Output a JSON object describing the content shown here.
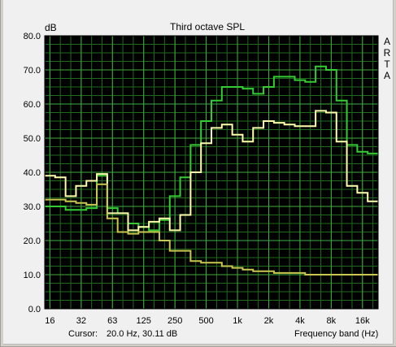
{
  "chart_data": {
    "type": "line",
    "title": "Third octave SPL",
    "ylabel": "dB",
    "xlabel": "Frequency band (Hz)",
    "watermark": [
      "A",
      "R",
      "T",
      "A"
    ],
    "ylim": [
      0,
      80
    ],
    "yticks": [
      "0.0",
      "10.0",
      "20.0",
      "30.0",
      "40.0",
      "50.0",
      "60.0",
      "70.0",
      "80.0"
    ],
    "xticks": [
      "16",
      "32",
      "63",
      "125",
      "250",
      "500",
      "1k",
      "2k",
      "4k",
      "8k",
      "16k"
    ],
    "grid": true,
    "cursor_label": "Cursor:",
    "cursor_value": "20.0 Hz, 30.11 dB",
    "bands": [
      "16",
      "20",
      "25",
      "31.5",
      "40",
      "50",
      "63",
      "80",
      "100",
      "125",
      "160",
      "200",
      "250",
      "315",
      "400",
      "500",
      "630",
      "800",
      "1k",
      "1.25k",
      "1.6k",
      "2k",
      "2.5k",
      "3.15k",
      "4k",
      "5k",
      "6.3k",
      "8k",
      "10k",
      "12.5k",
      "16k",
      "20k"
    ],
    "series": [
      {
        "color": "#33cc33",
        "values": [
          30,
          30,
          29,
          29,
          29.5,
          39,
          29.5,
          28,
          25,
          24,
          23,
          26,
          33,
          38.5,
          48,
          55,
          61,
          65,
          65,
          64.5,
          63,
          65,
          68,
          68,
          67,
          66.5,
          71,
          70,
          61,
          48,
          46,
          45.5
        ]
      },
      {
        "color": "#ffffaa",
        "values": [
          39,
          38.5,
          33,
          36,
          37.5,
          39.5,
          28,
          28,
          23,
          24,
          25.5,
          26.5,
          23,
          27.5,
          40,
          48.5,
          53,
          54,
          51,
          49,
          53,
          55,
          54.5,
          54,
          53.5,
          53.5,
          58,
          57.5,
          49,
          36,
          34,
          31.5
        ]
      },
      {
        "color": "#c8c850",
        "values": [
          32,
          32,
          31.5,
          31,
          30.5,
          36.5,
          26.5,
          22.5,
          22,
          22.5,
          22.5,
          20,
          17,
          17,
          14,
          13.5,
          13.5,
          12.5,
          12,
          11.5,
          11,
          11,
          10.5,
          10.5,
          10.5,
          10,
          10,
          10,
          10,
          10,
          10,
          10
        ]
      }
    ]
  }
}
